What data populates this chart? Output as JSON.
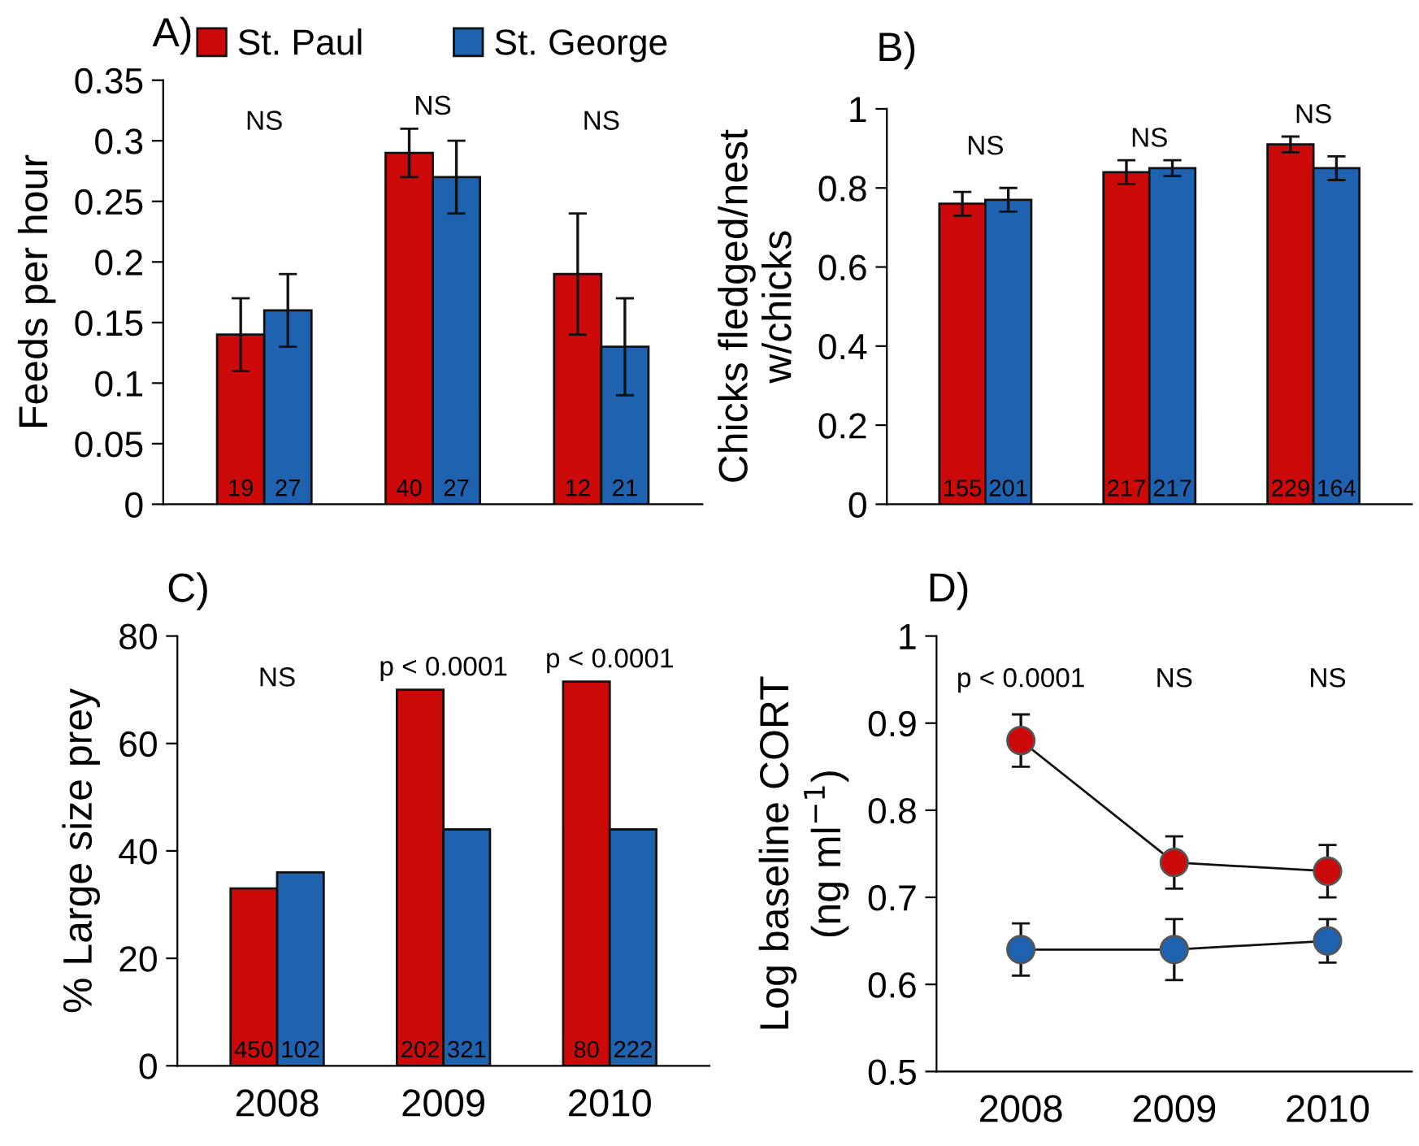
{
  "chart_data": [
    {
      "type": "bar",
      "title": "A)",
      "ylabel": "Feeds per hour",
      "categories": [
        "2008",
        "2009",
        "2010"
      ],
      "tick_labels": "y",
      "legend": "top",
      "grid": false,
      "ylim": [
        0,
        0.35
      ],
      "yticks": [
        0,
        0.05,
        0.1,
        0.15,
        0.2,
        0.25,
        0.3,
        0.35
      ],
      "series": [
        {
          "name": "St. Paul",
          "color": "#cc0a0a",
          "values": [
            0.14,
            0.29,
            0.19
          ],
          "errors": [
            0.03,
            0.02,
            0.05
          ]
        },
        {
          "name": "St. George",
          "color": "#1f62b0",
          "values": [
            0.16,
            0.27,
            0.13
          ],
          "errors": [
            0.03,
            0.03,
            0.04
          ]
        }
      ],
      "annotations": [
        "NS",
        "NS",
        "NS",
        "19",
        "27",
        "40",
        "27",
        "12",
        "21"
      ]
    },
    {
      "type": "bar",
      "title": "B)",
      "ylabel": "Chicks fledged/nest\nw/chicks",
      "categories": [
        "2008",
        "2009",
        "2010"
      ],
      "tick_labels": "y",
      "grid": false,
      "ylim": [
        0,
        1
      ],
      "yticks": [
        0,
        0.2,
        0.4,
        0.6,
        0.8,
        1
      ],
      "series": [
        {
          "color": "#cc0a0a",
          "values": [
            0.76,
            0.84,
            0.91
          ],
          "errors": [
            0.03,
            0.03,
            0.02
          ]
        },
        {
          "color": "#1f62b0",
          "values": [
            0.77,
            0.85,
            0.85
          ],
          "errors": [
            0.03,
            0.02,
            0.03
          ]
        }
      ],
      "annotations": [
        "NS",
        "NS",
        "NS",
        "155",
        "201",
        "217",
        "217",
        "229",
        "164"
      ]
    },
    {
      "type": "bar",
      "title": "C)",
      "ylabel": "% Large size prey",
      "categories": [
        "2008",
        "2009",
        "2010"
      ],
      "grid": false,
      "ylim": [
        0,
        80
      ],
      "yticks": [
        0,
        20,
        40,
        60,
        80
      ],
      "series": [
        {
          "color": "#cc0a0a",
          "values": [
            33,
            70,
            71.5
          ]
        },
        {
          "color": "#1f62b0",
          "values": [
            36,
            44,
            44
          ]
        }
      ],
      "annotations": [
        "NS",
        "p < 0.0001",
        "p < 0.0001",
        "450",
        "102",
        "202",
        "321",
        "80",
        "222"
      ]
    },
    {
      "type": "line",
      "title": "D)",
      "ylabel": "Log baseline CORT\n(ng ml$^{−1}$)",
      "categories": [
        "2008",
        "2009",
        "2010"
      ],
      "grid": false,
      "marker": "circle",
      "ylim": [
        0.5,
        1
      ],
      "yticks": [
        0.5,
        0.6,
        0.7,
        0.8,
        0.9,
        1
      ],
      "series": [
        {
          "color": "#cc0a0a",
          "values": [
            0.88,
            0.74,
            0.73
          ],
          "errors": [
            0.03,
            0.03,
            0.03
          ]
        },
        {
          "color": "#1f62b0",
          "values": [
            0.64,
            0.64,
            0.65
          ],
          "errors": [
            0.03,
            0.035,
            0.025
          ]
        }
      ],
      "annotations": [
        "p < 0.0001",
        "NS",
        "NS"
      ]
    }
  ]
}
